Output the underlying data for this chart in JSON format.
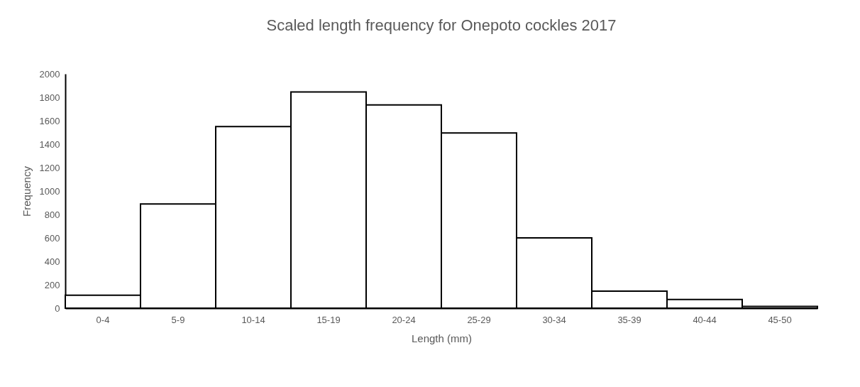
{
  "chart_data": {
    "type": "bar",
    "title": "Scaled length frequency for Onepoto cockles 2017",
    "xlabel": "Length (mm)",
    "ylabel": "Frequency",
    "categories": [
      "0-4",
      "5-9",
      "10-14",
      "15-19",
      "20-24",
      "25-29",
      "30-34",
      "35-39",
      "40-44",
      "45-50"
    ],
    "values": [
      110,
      890,
      1550,
      1845,
      1735,
      1495,
      600,
      145,
      75,
      15
    ],
    "color": "#ffffff",
    "ylim": [
      0,
      2000
    ],
    "yticks": [
      0,
      200,
      400,
      600,
      800,
      1000,
      1200,
      1400,
      1600,
      1800,
      2000
    ],
    "grid": false
  }
}
